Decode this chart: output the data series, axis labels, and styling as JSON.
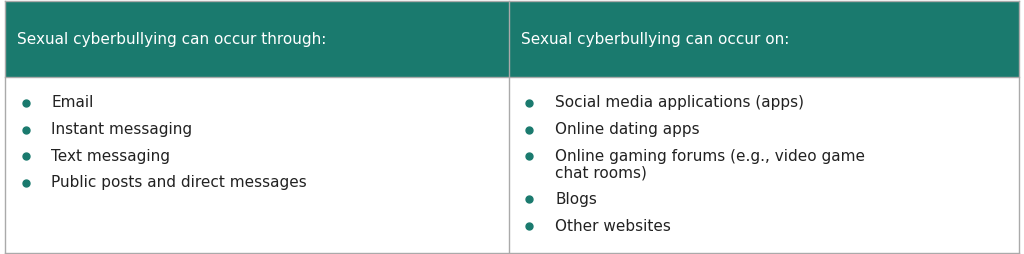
{
  "header_bg_color": "#1a7a6e",
  "header_text_color": "#ffffff",
  "body_bg_color": "#ffffff",
  "body_text_color": "#222222",
  "border_color": "#aaaaaa",
  "bullet_color": "#1a7a6e",
  "col1_header": "Sexual cyberbullying can occur through:",
  "col2_header": "Sexual cyberbullying can occur on:",
  "col1_items": [
    "Email",
    "Instant messaging",
    "Text messaging",
    "Public posts and direct messages"
  ],
  "col2_items_line1": [
    "Social media applications (apps)",
    "Online dating apps",
    "Online gaming forums (e.g., video game",
    "Blogs",
    "Other websites"
  ],
  "col2_item3_line2": "chat rooms)",
  "header_fontsize": 11.0,
  "body_fontsize": 11.0,
  "fig_width": 10.24,
  "fig_height": 2.54
}
